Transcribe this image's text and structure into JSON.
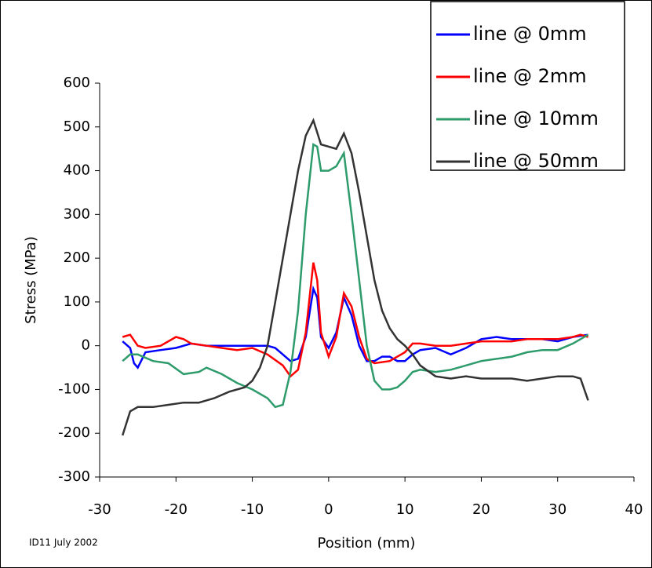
{
  "chart_data": {
    "type": "line",
    "x_label": "Position (mm)",
    "y_label": "Stress (MPa)",
    "annotation": "ID11 July 2002",
    "xlim": [
      -30,
      40
    ],
    "xticks": [
      -30,
      -20,
      -10,
      0,
      10,
      20,
      30,
      40
    ],
    "ylim": [
      -300,
      600
    ],
    "yticks": [
      -300,
      -200,
      -100,
      0,
      100,
      200,
      300,
      400,
      500,
      600
    ],
    "grid": false,
    "legend": "upper right",
    "series": [
      {
        "name": "line @ 0mm",
        "color": "#0000ff",
        "x": [
          -27,
          -26,
          -25.5,
          -25,
          -24,
          -22,
          -20,
          -18,
          -16,
          -14,
          -12,
          -10,
          -8,
          -7,
          -6,
          -5,
          -4,
          -3,
          -2,
          -1.5,
          -1,
          0,
          1,
          2,
          3,
          4,
          5,
          6,
          7,
          8,
          9,
          10,
          11,
          12,
          14,
          16,
          18,
          20,
          22,
          24,
          26,
          28,
          30,
          32,
          34
        ],
        "values": [
          10,
          -5,
          -40,
          -50,
          -15,
          -10,
          -5,
          5,
          0,
          0,
          0,
          0,
          0,
          -5,
          -20,
          -35,
          -30,
          20,
          130,
          110,
          20,
          -5,
          30,
          110,
          70,
          0,
          -35,
          -35,
          -25,
          -25,
          -35,
          -35,
          -20,
          -10,
          -5,
          -20,
          -5,
          15,
          20,
          15,
          15,
          15,
          10,
          20,
          25
        ]
      },
      {
        "name": "line @ 2mm",
        "color": "#ff0000",
        "x": [
          -27,
          -26,
          -25,
          -24,
          -22,
          -20,
          -19,
          -18,
          -16,
          -14,
          -12,
          -10,
          -8,
          -6,
          -5,
          -4,
          -3,
          -2,
          -1.5,
          -1,
          0,
          1,
          2,
          3,
          4,
          5,
          6,
          8,
          10,
          11,
          12,
          14,
          16,
          18,
          20,
          22,
          24,
          26,
          28,
          30,
          32,
          33,
          34
        ],
        "values": [
          20,
          25,
          0,
          -5,
          0,
          20,
          15,
          5,
          0,
          -5,
          -10,
          -5,
          -20,
          -45,
          -70,
          -55,
          30,
          190,
          150,
          30,
          -25,
          20,
          120,
          90,
          20,
          -30,
          -40,
          -35,
          -15,
          5,
          5,
          0,
          0,
          5,
          10,
          10,
          10,
          15,
          15,
          15,
          20,
          25,
          20
        ]
      },
      {
        "name": "line @ 10mm",
        "color": "#2e9b6b",
        "x": [
          -27,
          -26,
          -25,
          -23,
          -21,
          -19,
          -17,
          -16,
          -14,
          -12,
          -10,
          -8,
          -7,
          -6,
          -5,
          -4,
          -3,
          -2,
          -1.5,
          -1,
          0,
          1,
          2,
          3,
          4,
          5,
          6,
          7,
          8,
          9,
          10,
          11,
          12,
          14,
          16,
          18,
          20,
          22,
          24,
          26,
          28,
          30,
          32,
          34
        ],
        "values": [
          -35,
          -20,
          -20,
          -35,
          -40,
          -65,
          -60,
          -50,
          -65,
          -85,
          -100,
          -120,
          -140,
          -135,
          -60,
          80,
          300,
          460,
          455,
          400,
          400,
          410,
          440,
          300,
          150,
          0,
          -80,
          -100,
          -100,
          -95,
          -80,
          -60,
          -55,
          -60,
          -55,
          -45,
          -35,
          -30,
          -25,
          -15,
          -10,
          -10,
          5,
          25
        ]
      },
      {
        "name": "line @ 50mm",
        "color": "#333333",
        "x": [
          -27,
          -26,
          -25,
          -23,
          -21,
          -19,
          -17,
          -15,
          -13,
          -11,
          -10,
          -9,
          -8,
          -7,
          -6,
          -5,
          -4,
          -3,
          -2,
          -1,
          0,
          1,
          2,
          3,
          4,
          5,
          6,
          7,
          8,
          9,
          10,
          11,
          12,
          14,
          16,
          18,
          20,
          22,
          24,
          26,
          28,
          30,
          32,
          33,
          34
        ],
        "values": [
          -205,
          -150,
          -140,
          -140,
          -135,
          -130,
          -130,
          -120,
          -105,
          -95,
          -80,
          -50,
          0,
          100,
          200,
          300,
          400,
          480,
          515,
          460,
          455,
          450,
          485,
          440,
          350,
          250,
          150,
          80,
          40,
          15,
          0,
          -20,
          -45,
          -70,
          -75,
          -70,
          -75,
          -75,
          -75,
          -80,
          -75,
          -70,
          -70,
          -75,
          -125
        ]
      }
    ]
  }
}
